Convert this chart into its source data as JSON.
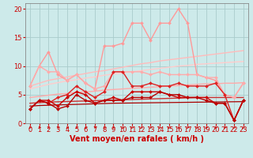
{
  "xlabel": "Vent moyen/en rafales ( km/h )",
  "xlim": [
    -0.5,
    23.5
  ],
  "ylim": [
    0,
    21
  ],
  "yticks": [
    0,
    5,
    10,
    15,
    20
  ],
  "xticks": [
    0,
    1,
    2,
    3,
    4,
    5,
    6,
    7,
    8,
    9,
    10,
    11,
    12,
    13,
    14,
    15,
    16,
    17,
    18,
    19,
    20,
    21,
    22,
    23
  ],
  "bg_color": "#cdeaea",
  "grid_color": "#aacccc",
  "series": [
    {
      "y": [
        6.5,
        7.0,
        7.5,
        7.8,
        8.1,
        8.4,
        8.7,
        9.0,
        9.2,
        9.5,
        9.8,
        10.1,
        10.4,
        10.6,
        10.9,
        11.1,
        11.3,
        11.5,
        11.7,
        11.9,
        12.1,
        12.3,
        12.5,
        12.7
      ],
      "color": "#ffbbbb",
      "linewidth": 1.0,
      "marker": null,
      "linestyle": "-",
      "zorder": 2
    },
    {
      "y": [
        6.0,
        6.4,
        6.8,
        7.1,
        7.4,
        7.6,
        7.9,
        8.1,
        8.4,
        8.6,
        8.8,
        9.0,
        9.2,
        9.4,
        9.6,
        9.8,
        10.0,
        10.1,
        10.3,
        10.4,
        10.5,
        10.6,
        10.7,
        10.8
      ],
      "color": "#ffcccc",
      "linewidth": 1.0,
      "marker": null,
      "linestyle": "-",
      "zorder": 2
    },
    {
      "y": [
        4.5,
        4.7,
        4.9,
        5.1,
        5.2,
        5.4,
        5.5,
        5.6,
        5.8,
        5.9,
        6.0,
        6.1,
        6.2,
        6.3,
        6.4,
        6.5,
        6.6,
        6.7,
        6.8,
        6.9,
        6.9,
        7.0,
        7.0,
        7.1
      ],
      "color": "#ffaaaa",
      "linewidth": 1.0,
      "marker": null,
      "linestyle": "-",
      "zorder": 2
    },
    {
      "y": [
        3.5,
        3.6,
        3.7,
        3.75,
        3.8,
        3.85,
        3.9,
        3.95,
        4.0,
        4.05,
        4.1,
        4.15,
        4.2,
        4.25,
        4.3,
        4.35,
        4.4,
        4.45,
        4.5,
        4.5,
        4.5,
        4.5,
        4.5,
        4.5
      ],
      "color": "#cc3333",
      "linewidth": 1.0,
      "marker": null,
      "linestyle": "-",
      "zorder": 2
    },
    {
      "y": [
        3.0,
        3.1,
        3.15,
        3.2,
        3.25,
        3.3,
        3.35,
        3.4,
        3.45,
        3.5,
        3.52,
        3.54,
        3.56,
        3.58,
        3.6,
        3.62,
        3.64,
        3.66,
        3.68,
        3.7,
        3.72,
        3.74,
        3.76,
        3.78
      ],
      "color": "#aa0000",
      "linewidth": 0.9,
      "marker": null,
      "linestyle": "-",
      "zorder": 2
    },
    {
      "y": [
        6.5,
        10.0,
        12.5,
        8.5,
        7.5,
        8.5,
        7.0,
        6.0,
        13.5,
        13.5,
        14.0,
        17.5,
        17.5,
        14.5,
        17.5,
        17.5,
        20.0,
        17.5,
        8.5,
        8.0,
        7.5,
        5.0,
        4.5,
        7.0
      ],
      "color": "#ff9999",
      "linewidth": 1.0,
      "marker": "D",
      "markersize": 2.0,
      "linestyle": "-",
      "zorder": 3
    },
    {
      "y": [
        6.5,
        10.0,
        9.0,
        9.0,
        7.5,
        8.5,
        7.0,
        6.0,
        6.5,
        9.0,
        9.0,
        9.0,
        9.0,
        8.5,
        9.0,
        8.5,
        8.5,
        8.5,
        8.5,
        8.0,
        8.0,
        5.0,
        4.5,
        7.0
      ],
      "color": "#ffaaaa",
      "linewidth": 1.0,
      "marker": "D",
      "markersize": 2.0,
      "linestyle": "-",
      "zorder": 3
    },
    {
      "y": [
        2.5,
        4.0,
        3.5,
        4.5,
        5.0,
        6.5,
        5.5,
        4.5,
        5.5,
        9.0,
        9.0,
        6.5,
        6.5,
        7.0,
        6.5,
        6.5,
        7.0,
        6.5,
        6.5,
        6.5,
        7.0,
        5.0,
        0.5,
        4.0
      ],
      "color": "#dd2222",
      "linewidth": 1.0,
      "marker": "D",
      "markersize": 2.0,
      "linestyle": "-",
      "zorder": 4
    },
    {
      "y": [
        2.5,
        4.0,
        4.0,
        3.0,
        4.5,
        5.5,
        5.0,
        3.5,
        4.0,
        4.5,
        4.0,
        5.5,
        5.5,
        5.5,
        5.5,
        5.0,
        4.5,
        4.5,
        4.5,
        4.5,
        3.5,
        3.5,
        0.5,
        4.0
      ],
      "color": "#cc0000",
      "linewidth": 1.0,
      "marker": "D",
      "markersize": 2.0,
      "linestyle": "-",
      "zorder": 4
    },
    {
      "y": [
        2.5,
        4.0,
        3.5,
        2.5,
        3.0,
        5.0,
        4.0,
        3.5,
        4.0,
        4.0,
        4.0,
        4.5,
        4.5,
        4.5,
        5.5,
        5.0,
        5.0,
        4.5,
        4.5,
        4.0,
        3.5,
        3.5,
        0.5,
        4.0
      ],
      "color": "#bb0000",
      "linewidth": 1.0,
      "marker": "D",
      "markersize": 2.0,
      "linestyle": "-",
      "zorder": 4
    }
  ],
  "xlabel_fontsize": 7,
  "tick_fontsize": 6,
  "tick_color": "#cc0000",
  "axis_color": "#cc0000",
  "arrow_angles_deg": [
    210,
    210,
    225,
    200,
    210,
    215,
    210,
    195,
    210,
    215,
    220,
    215,
    220,
    215,
    210,
    220,
    215,
    210,
    210,
    215,
    215,
    210,
    215,
    220
  ]
}
